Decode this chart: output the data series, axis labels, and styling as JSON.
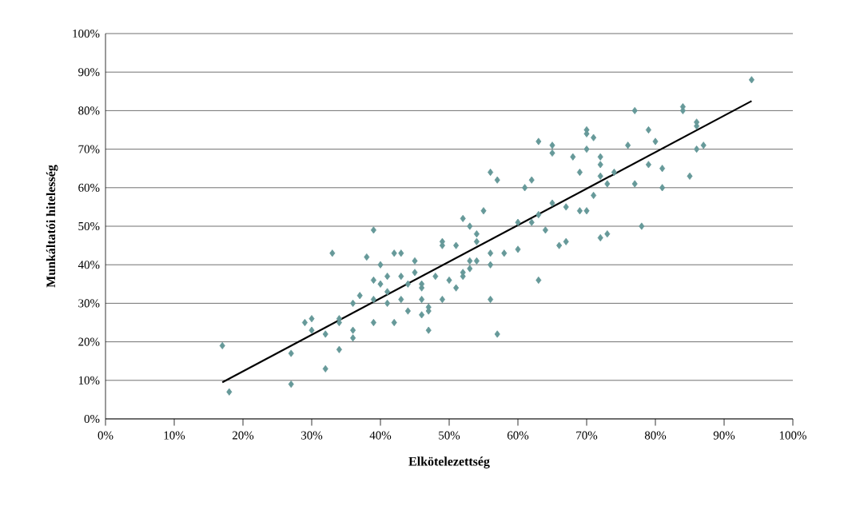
{
  "chart_data": {
    "type": "scatter",
    "xlabel": "Elkötelezettség",
    "ylabel": "Munkáltatói hitelesség",
    "xlim": [
      0,
      100
    ],
    "ylim": [
      0,
      100
    ],
    "xticks": [
      {
        "value": 0,
        "label": "0%"
      },
      {
        "value": 10,
        "label": "10%"
      },
      {
        "value": 20,
        "label": "20%"
      },
      {
        "value": 30,
        "label": "30%"
      },
      {
        "value": 40,
        "label": "40%"
      },
      {
        "value": 50,
        "label": "50%"
      },
      {
        "value": 60,
        "label": "60%"
      },
      {
        "value": 70,
        "label": "70%"
      },
      {
        "value": 80,
        "label": "80%"
      },
      {
        "value": 90,
        "label": "90%"
      },
      {
        "value": 100,
        "label": "100%"
      }
    ],
    "yticks": [
      {
        "value": 0,
        "label": "0%"
      },
      {
        "value": 10,
        "label": "10%"
      },
      {
        "value": 20,
        "label": "20%"
      },
      {
        "value": 30,
        "label": "30%"
      },
      {
        "value": 40,
        "label": "40%"
      },
      {
        "value": 50,
        "label": "50%"
      },
      {
        "value": 60,
        "label": "60%"
      },
      {
        "value": 70,
        "label": "70%"
      },
      {
        "value": 80,
        "label": "80%"
      },
      {
        "value": 90,
        "label": "90%"
      },
      {
        "value": 100,
        "label": "100%"
      }
    ],
    "grid": "y",
    "series": [
      {
        "color": "#669999",
        "marker": "diamond",
        "x": [
          17,
          18,
          27,
          27,
          29,
          30,
          30,
          32,
          32,
          33,
          34,
          34,
          34,
          36,
          36,
          36,
          37,
          38,
          39,
          39,
          39,
          39,
          40,
          40,
          41,
          41,
          41,
          42,
          42,
          43,
          43,
          43,
          44,
          44,
          45,
          45,
          46,
          46,
          46,
          46,
          47,
          47,
          47,
          48,
          49,
          49,
          49,
          50,
          51,
          51,
          52,
          52,
          52,
          53,
          53,
          53,
          54,
          54,
          54,
          55,
          56,
          56,
          56,
          56,
          57,
          57,
          58,
          60,
          60,
          61,
          62,
          62,
          63,
          63,
          63,
          64,
          65,
          65,
          65,
          66,
          67,
          67,
          68,
          69,
          69,
          70,
          70,
          70,
          70,
          71,
          71,
          72,
          72,
          72,
          72,
          73,
          73,
          74,
          76,
          77,
          77,
          78,
          79,
          79,
          80,
          81,
          81,
          84,
          84,
          85,
          86,
          86,
          86,
          87,
          94
        ],
        "values": [
          19,
          7,
          17,
          9,
          25,
          26,
          23,
          22,
          13,
          43,
          26,
          25,
          18,
          30,
          23,
          21,
          32,
          42,
          49,
          36,
          31,
          25,
          40,
          35,
          37,
          33,
          30,
          43,
          25,
          43,
          37,
          31,
          35,
          28,
          41,
          38,
          35,
          34,
          31,
          27,
          29,
          28,
          23,
          37,
          46,
          45,
          31,
          36,
          45,
          34,
          52,
          38,
          37,
          50,
          41,
          39,
          48,
          46,
          41,
          54,
          64,
          43,
          40,
          31,
          62,
          22,
          43,
          51,
          44,
          60,
          62,
          51,
          72,
          53,
          36,
          49,
          71,
          69,
          56,
          45,
          55,
          46,
          68,
          64,
          54,
          75,
          74,
          70,
          54,
          73,
          58,
          68,
          66,
          63,
          47,
          61,
          48,
          64,
          71,
          80,
          61,
          50,
          75,
          66,
          72,
          65,
          60,
          81,
          80,
          63,
          77,
          76,
          70,
          71,
          88
        ]
      },
      {
        "type": "line",
        "color": "#000000",
        "marker": "none",
        "line_style": "solid",
        "x": [
          17,
          94
        ],
        "values": [
          9.5,
          82.5
        ]
      }
    ]
  }
}
